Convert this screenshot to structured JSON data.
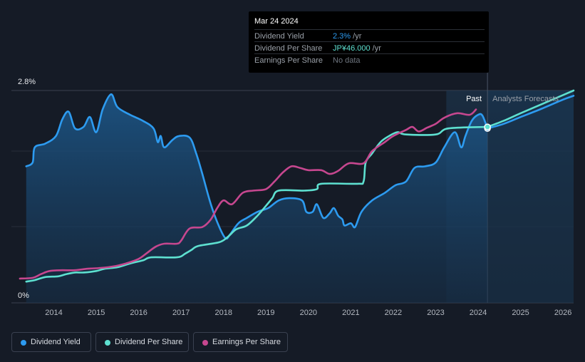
{
  "chart_data": {
    "type": "line",
    "title": "",
    "y_axis": {
      "min_label": "0%",
      "max_label": "2.8%",
      "range": [
        0,
        2.8
      ]
    },
    "x_axis": {
      "ticks": [
        "2014",
        "2015",
        "2016",
        "2017",
        "2018",
        "2019",
        "2020",
        "2021",
        "2022",
        "2023",
        "2024",
        "2025",
        "2026"
      ]
    },
    "regions": {
      "past_label": "Past",
      "forecast_label": "Analysts Forecasts"
    },
    "series": [
      {
        "name": "Dividend Yield",
        "color": "#2d9bf0",
        "unit": "%",
        "area": true,
        "points": [
          [
            2013.35,
            1.8
          ],
          [
            2013.5,
            1.85
          ],
          [
            2013.55,
            2.05
          ],
          [
            2013.8,
            2.1
          ],
          [
            2014.05,
            2.2
          ],
          [
            2014.2,
            2.42
          ],
          [
            2014.35,
            2.52
          ],
          [
            2014.5,
            2.3
          ],
          [
            2014.7,
            2.32
          ],
          [
            2014.85,
            2.45
          ],
          [
            2015.0,
            2.25
          ],
          [
            2015.15,
            2.55
          ],
          [
            2015.35,
            2.75
          ],
          [
            2015.5,
            2.58
          ],
          [
            2015.8,
            2.48
          ],
          [
            2016.1,
            2.4
          ],
          [
            2016.35,
            2.3
          ],
          [
            2016.45,
            2.12
          ],
          [
            2016.52,
            2.2
          ],
          [
            2016.6,
            2.05
          ],
          [
            2016.8,
            2.15
          ],
          [
            2016.95,
            2.2
          ],
          [
            2017.2,
            2.18
          ],
          [
            2017.35,
            1.98
          ],
          [
            2017.5,
            1.7
          ],
          [
            2017.7,
            1.3
          ],
          [
            2017.9,
            1.0
          ],
          [
            2018.05,
            0.85
          ],
          [
            2018.15,
            0.9
          ],
          [
            2018.35,
            1.05
          ],
          [
            2018.55,
            1.12
          ],
          [
            2018.8,
            1.2
          ],
          [
            2019.05,
            1.25
          ],
          [
            2019.3,
            1.35
          ],
          [
            2019.55,
            1.38
          ],
          [
            2019.85,
            1.35
          ],
          [
            2019.95,
            1.2
          ],
          [
            2020.1,
            1.2
          ],
          [
            2020.2,
            1.3
          ],
          [
            2020.35,
            1.12
          ],
          [
            2020.5,
            1.18
          ],
          [
            2020.6,
            1.25
          ],
          [
            2020.7,
            1.15
          ],
          [
            2020.8,
            1.1
          ],
          [
            2020.85,
            1.02
          ],
          [
            2021.0,
            1.05
          ],
          [
            2021.1,
            1.0
          ],
          [
            2021.25,
            1.2
          ],
          [
            2021.5,
            1.35
          ],
          [
            2021.8,
            1.45
          ],
          [
            2022.05,
            1.55
          ],
          [
            2022.3,
            1.6
          ],
          [
            2022.5,
            1.78
          ],
          [
            2022.75,
            1.8
          ],
          [
            2023.0,
            1.85
          ],
          [
            2023.2,
            2.05
          ],
          [
            2023.45,
            2.25
          ],
          [
            2023.6,
            2.05
          ],
          [
            2023.7,
            2.2
          ],
          [
            2023.85,
            2.4
          ],
          [
            2024.0,
            2.48
          ],
          [
            2024.1,
            2.47
          ],
          [
            2024.22,
            2.3
          ]
        ]
      },
      {
        "name": "Dividend Yield Forecast",
        "color": "#2d9bf0",
        "unit": "%",
        "forecast": true,
        "points": [
          [
            2024.22,
            2.3
          ],
          [
            2024.6,
            2.36
          ],
          [
            2025.0,
            2.45
          ],
          [
            2025.5,
            2.56
          ],
          [
            2026.0,
            2.68
          ],
          [
            2026.25,
            2.73
          ]
        ]
      },
      {
        "name": "Dividend Per Share",
        "color": "#5ee0d0",
        "unit": "JP¥",
        "points": [
          [
            2013.35,
            0.28
          ],
          [
            2013.55,
            0.3
          ],
          [
            2013.8,
            0.34
          ],
          [
            2014.1,
            0.35
          ],
          [
            2014.3,
            0.38
          ],
          [
            2014.5,
            0.4
          ],
          [
            2014.7,
            0.4
          ],
          [
            2015.0,
            0.42
          ],
          [
            2015.2,
            0.45
          ],
          [
            2015.5,
            0.47
          ],
          [
            2015.8,
            0.52
          ],
          [
            2016.1,
            0.56
          ],
          [
            2016.3,
            0.6
          ],
          [
            2016.9,
            0.6
          ],
          [
            2017.1,
            0.65
          ],
          [
            2017.25,
            0.7
          ],
          [
            2017.4,
            0.75
          ],
          [
            2017.9,
            0.8
          ],
          [
            2018.1,
            0.87
          ],
          [
            2018.3,
            0.97
          ],
          [
            2018.55,
            1.02
          ],
          [
            2018.8,
            1.15
          ],
          [
            2019.0,
            1.28
          ],
          [
            2019.15,
            1.38
          ],
          [
            2019.3,
            1.48
          ],
          [
            2019.9,
            1.48
          ],
          [
            2020.2,
            1.5
          ],
          [
            2020.3,
            1.57
          ],
          [
            2021.15,
            1.57
          ],
          [
            2021.3,
            1.6
          ],
          [
            2021.35,
            1.85
          ],
          [
            2021.5,
            1.97
          ],
          [
            2021.7,
            2.12
          ],
          [
            2021.9,
            2.2
          ],
          [
            2022.1,
            2.25
          ],
          [
            2022.3,
            2.22
          ],
          [
            2023.0,
            2.22
          ],
          [
            2023.3,
            2.3
          ],
          [
            2024.22,
            2.32
          ]
        ]
      },
      {
        "name": "Dividend Per Share Forecast",
        "color": "#5ee0d0",
        "unit": "JP¥",
        "forecast": true,
        "points": [
          [
            2024.22,
            2.32
          ],
          [
            2024.6,
            2.4
          ],
          [
            2025.0,
            2.5
          ],
          [
            2025.5,
            2.62
          ],
          [
            2026.0,
            2.74
          ],
          [
            2026.25,
            2.8
          ]
        ]
      },
      {
        "name": "Earnings Per Share",
        "color": "#c6478f",
        "unit": "JP¥",
        "points": [
          [
            2013.2,
            0.32
          ],
          [
            2013.5,
            0.33
          ],
          [
            2013.7,
            0.38
          ],
          [
            2013.9,
            0.42
          ],
          [
            2014.2,
            0.43
          ],
          [
            2014.5,
            0.43
          ],
          [
            2014.8,
            0.45
          ],
          [
            2015.1,
            0.46
          ],
          [
            2015.4,
            0.48
          ],
          [
            2015.7,
            0.52
          ],
          [
            2016.0,
            0.58
          ],
          [
            2016.2,
            0.66
          ],
          [
            2016.4,
            0.74
          ],
          [
            2016.6,
            0.78
          ],
          [
            2016.9,
            0.78
          ],
          [
            2017.0,
            0.82
          ],
          [
            2017.2,
            0.98
          ],
          [
            2017.5,
            1.0
          ],
          [
            2017.7,
            1.1
          ],
          [
            2017.85,
            1.25
          ],
          [
            2018.0,
            1.35
          ],
          [
            2018.2,
            1.3
          ],
          [
            2018.45,
            1.45
          ],
          [
            2018.7,
            1.48
          ],
          [
            2019.0,
            1.5
          ],
          [
            2019.2,
            1.6
          ],
          [
            2019.4,
            1.72
          ],
          [
            2019.6,
            1.8
          ],
          [
            2019.8,
            1.78
          ],
          [
            2020.0,
            1.75
          ],
          [
            2020.3,
            1.75
          ],
          [
            2020.5,
            1.7
          ],
          [
            2020.7,
            1.74
          ],
          [
            2020.95,
            1.84
          ],
          [
            2021.3,
            1.84
          ],
          [
            2021.5,
            2.0
          ],
          [
            2021.8,
            2.12
          ],
          [
            2022.0,
            2.2
          ],
          [
            2022.3,
            2.28
          ],
          [
            2022.45,
            2.32
          ],
          [
            2022.6,
            2.26
          ],
          [
            2022.8,
            2.31
          ],
          [
            2023.0,
            2.36
          ],
          [
            2023.2,
            2.44
          ],
          [
            2023.5,
            2.5
          ],
          [
            2023.8,
            2.48
          ],
          [
            2023.95,
            2.55
          ]
        ]
      }
    ],
    "highlight": {
      "date": "Mar 24 2024",
      "x": 2024.22,
      "rows": [
        {
          "label": "Dividend Yield",
          "value": "2.3%",
          "unit": " /yr",
          "color": "#2d9bf0"
        },
        {
          "label": "Dividend Per Share",
          "value": "JP¥46.000",
          "unit": " /yr",
          "color": "#5ee0d0"
        },
        {
          "label": "Earnings Per Share",
          "value": "No data",
          "unit": "",
          "color": "#6f7680"
        }
      ]
    },
    "forecast_shade_from": 2023.25,
    "legend": [
      {
        "label": "Dividend Yield",
        "color": "#2d9bf0"
      },
      {
        "label": "Dividend Per Share",
        "color": "#5ee0d0"
      },
      {
        "label": "Earnings Per Share",
        "color": "#c6478f"
      }
    ]
  }
}
